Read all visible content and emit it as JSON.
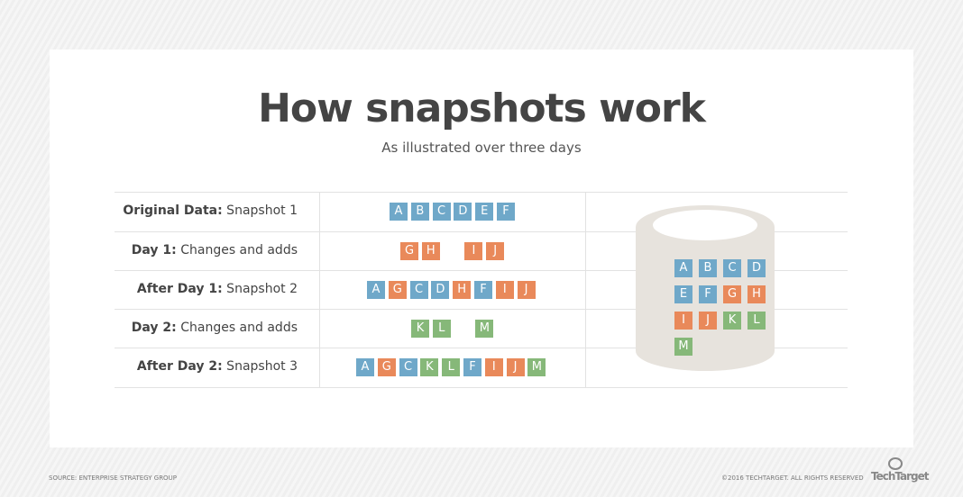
{
  "title": "How snapshots work",
  "subtitle": "As illustrated over three days",
  "colors": {
    "original": "#6fa8c9",
    "day1": "#e9895a",
    "day2": "#86b879"
  },
  "rows": [
    {
      "bold": "Original Data:",
      "rest": " Snapshot 1",
      "blocks": [
        [
          "A",
          "original"
        ],
        [
          "B",
          "original"
        ],
        [
          "C",
          "original"
        ],
        [
          "D",
          "original"
        ],
        [
          "E",
          "original"
        ],
        [
          "F",
          "original"
        ]
      ]
    },
    {
      "bold": "Day 1:",
      "rest": " Changes and adds",
      "blocks": [
        [
          "G",
          "day1"
        ],
        [
          "H",
          "day1"
        ],
        null,
        [
          "I",
          "day1"
        ],
        [
          "J",
          "day1"
        ]
      ]
    },
    {
      "bold": "After Day 1:",
      "rest": " Snapshot 2",
      "blocks": [
        [
          "A",
          "original"
        ],
        [
          "G",
          "day1"
        ],
        [
          "C",
          "original"
        ],
        [
          "D",
          "original"
        ],
        [
          "H",
          "day1"
        ],
        [
          "F",
          "original"
        ],
        [
          "I",
          "day1"
        ],
        [
          "J",
          "day1"
        ]
      ]
    },
    {
      "bold": "Day 2:",
      "rest": " Changes and adds",
      "blocks": [
        [
          "K",
          "day2"
        ],
        [
          "L",
          "day2"
        ],
        null,
        [
          "M",
          "day2"
        ]
      ]
    },
    {
      "bold": "After Day 2:",
      "rest": " Snapshot 3",
      "blocks": [
        [
          "A",
          "original"
        ],
        [
          "G",
          "day1"
        ],
        [
          "C",
          "original"
        ],
        [
          "K",
          "day2"
        ],
        [
          "L",
          "day2"
        ],
        [
          "F",
          "original"
        ],
        [
          "I",
          "day1"
        ],
        [
          "J",
          "day1"
        ],
        [
          "M",
          "day2"
        ]
      ]
    }
  ],
  "storage": [
    [
      "A",
      "original"
    ],
    [
      "B",
      "original"
    ],
    [
      "C",
      "original"
    ],
    [
      "D",
      "original"
    ],
    [
      "E",
      "original"
    ],
    [
      "F",
      "original"
    ],
    [
      "G",
      "day1"
    ],
    [
      "H",
      "day1"
    ],
    [
      "I",
      "day1"
    ],
    [
      "J",
      "day1"
    ],
    [
      "K",
      "day2"
    ],
    [
      "L",
      "day2"
    ],
    [
      "M",
      "day2"
    ]
  ],
  "footer": {
    "source": "SOURCE: ENTERPRISE STRATEGY GROUP",
    "copyright": "©2016 TECHTARGET. ALL RIGHTS RESERVED",
    "logo": "TechTarget"
  }
}
